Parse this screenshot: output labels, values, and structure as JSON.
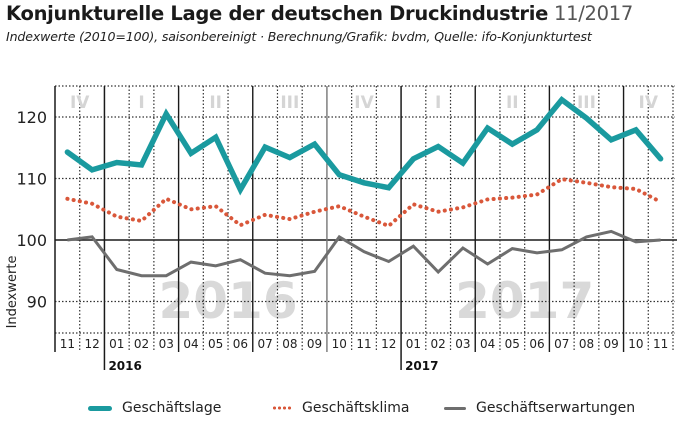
{
  "header": {
    "title": "Konjunkturelle Lage der deutschen Druckindustrie",
    "date": "11/2017",
    "subtitle": "Indexwerte (2010=100), saisonbereinigt · Berechnung/Grafik: bvdm, Quelle: ifo-Konjunkturtest"
  },
  "chart_data": {
    "type": "line",
    "title": "Konjunkturelle Lage der deutschen Druckindustrie 11/2017",
    "subtitle": "Indexwerte (2010=100), saisonbereinigt · Berechnung/Grafik: bvdm, Quelle: ifo-Konjunkturtest",
    "xlabel": "",
    "ylabel": "Indexwerte",
    "ylim": [
      85,
      124
    ],
    "yticks": [
      90,
      100,
      110,
      120
    ],
    "grid": true,
    "x": [
      "11",
      "12",
      "01",
      "02",
      "03",
      "04",
      "05",
      "06",
      "07",
      "08",
      "09",
      "10",
      "11",
      "12",
      "01",
      "02",
      "03",
      "04",
      "05",
      "06",
      "07",
      "08",
      "09",
      "10",
      "11"
    ],
    "x_full": [
      "2015-11",
      "2015-12",
      "2016-01",
      "2016-02",
      "2016-03",
      "2016-04",
      "2016-05",
      "2016-06",
      "2016-07",
      "2016-08",
      "2016-09",
      "2016-10",
      "2016-11",
      "2016-12",
      "2017-01",
      "2017-02",
      "2017-03",
      "2017-04",
      "2017-05",
      "2017-06",
      "2017-07",
      "2017-08",
      "2017-09",
      "2017-10",
      "2017-11"
    ],
    "year_labels": [
      {
        "label": "2016",
        "start_index": 2
      },
      {
        "label": "2017",
        "start_index": 14
      }
    ],
    "quarter_labels": [
      {
        "label": "IV",
        "start_index": 0,
        "end_index": 1
      },
      {
        "label": "I",
        "start_index": 2,
        "end_index": 4
      },
      {
        "label": "II",
        "start_index": 5,
        "end_index": 7
      },
      {
        "label": "III",
        "start_index": 8,
        "end_index": 10
      },
      {
        "label": "IV",
        "start_index": 11,
        "end_index": 13
      },
      {
        "label": "I",
        "start_index": 14,
        "end_index": 16
      },
      {
        "label": "II",
        "start_index": 17,
        "end_index": 19
      },
      {
        "label": "III",
        "start_index": 20,
        "end_index": 22
      },
      {
        "label": "IV",
        "start_index": 23,
        "end_index": 24
      }
    ],
    "watermarks": [
      {
        "label": "2016",
        "center_index": 6
      },
      {
        "label": "2017",
        "center_index": 18
      }
    ],
    "baseline": 100,
    "legend_position": "bottom",
    "series": [
      {
        "name": "Geschäftslage",
        "style": "solid-thick",
        "color": "#1a9a9f",
        "values": [
          114.3,
          111.4,
          112.6,
          112.2,
          120.5,
          114.1,
          116.7,
          108.2,
          115.1,
          113.4,
          115.6,
          110.6,
          109.3,
          108.5,
          113.2,
          115.2,
          112.5,
          118.2,
          115.6,
          117.9,
          122.8,
          119.8,
          116.3,
          117.9,
          113.2
        ]
      },
      {
        "name": "Geschäftsklima",
        "style": "dotted",
        "color": "#d9573a",
        "values": [
          106.7,
          105.9,
          103.8,
          103.1,
          106.7,
          105.0,
          105.5,
          102.4,
          104.1,
          103.4,
          104.6,
          105.5,
          103.8,
          102.3,
          105.8,
          104.6,
          105.3,
          106.6,
          106.9,
          107.4,
          109.9,
          109.3,
          108.6,
          108.3,
          106.2
        ]
      },
      {
        "name": "Geschäftserwartungen",
        "style": "solid",
        "color": "#6e6e6e",
        "values": [
          100.0,
          100.5,
          95.2,
          94.2,
          94.2,
          96.4,
          95.8,
          96.8,
          94.6,
          94.2,
          94.9,
          100.5,
          98.1,
          96.5,
          99.0,
          94.8,
          98.7,
          96.1,
          98.6,
          97.9,
          98.4,
          100.5,
          101.4,
          99.7,
          100.0
        ]
      }
    ]
  },
  "legend": {
    "items": [
      {
        "label": "Geschäftslage"
      },
      {
        "label": "Geschäftsklima"
      },
      {
        "label": "Geschäftserwartungen"
      }
    ]
  }
}
